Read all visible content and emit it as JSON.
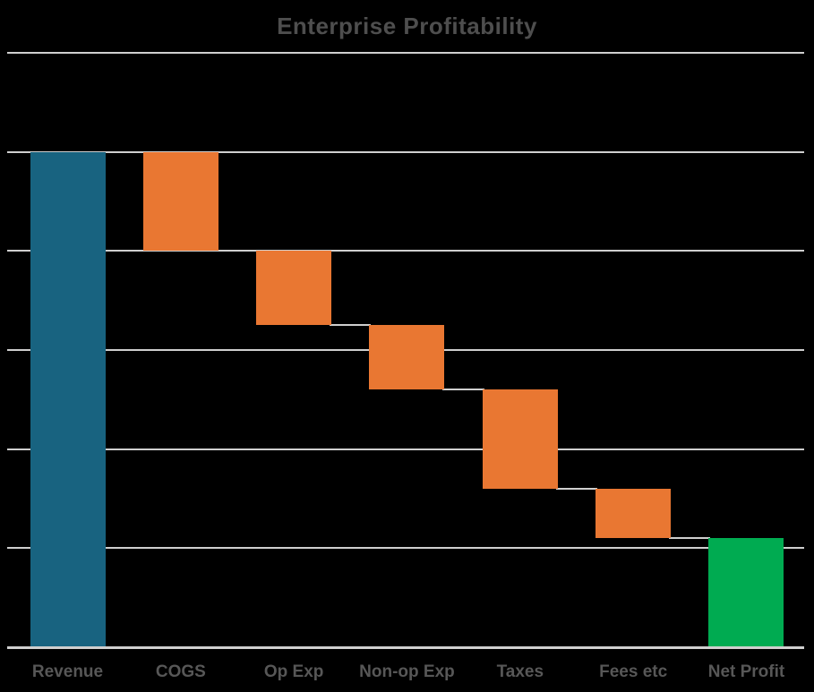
{
  "title": "Enterprise Profitability",
  "colors": {
    "background": "#000000",
    "title_text": "#4E4E4E",
    "label_text": "#575757",
    "gridline": "#CFCFCF",
    "connector": "#CFCFCF",
    "axis_line": "#CFCFCF",
    "total_bar_blue": "#186380",
    "decrease_bar_orange": "#E97732",
    "net_bar_green": "#00AB51"
  },
  "chart_data": {
    "type": "waterfall",
    "title": "Enterprise Profitability",
    "categories": [
      "Revenue",
      "COGS",
      "Op Exp",
      "Non-op Exp",
      "Taxes",
      "Fees etc",
      "Net Profit"
    ],
    "bars": [
      {
        "label": "Revenue",
        "role": "total",
        "start": 0,
        "end": 500,
        "value": 500
      },
      {
        "label": "COGS",
        "role": "decrease",
        "start": 500,
        "end": 400,
        "value": -100
      },
      {
        "label": "Op Exp",
        "role": "decrease",
        "start": 400,
        "end": 325,
        "value": -75
      },
      {
        "label": "Non-op Exp",
        "role": "decrease",
        "start": 325,
        "end": 260,
        "value": -65
      },
      {
        "label": "Taxes",
        "role": "decrease",
        "start": 260,
        "end": 160,
        "value": -100
      },
      {
        "label": "Fees etc",
        "role": "decrease",
        "start": 160,
        "end": 110,
        "value": -50
      },
      {
        "label": "Net Profit",
        "role": "net",
        "start": 0,
        "end": 110,
        "value": 110
      }
    ],
    "ylim": [
      0,
      600
    ],
    "gridline_step": 100,
    "grid": true,
    "y_tick_labels_visible": false,
    "legend": false,
    "connectors": true
  }
}
